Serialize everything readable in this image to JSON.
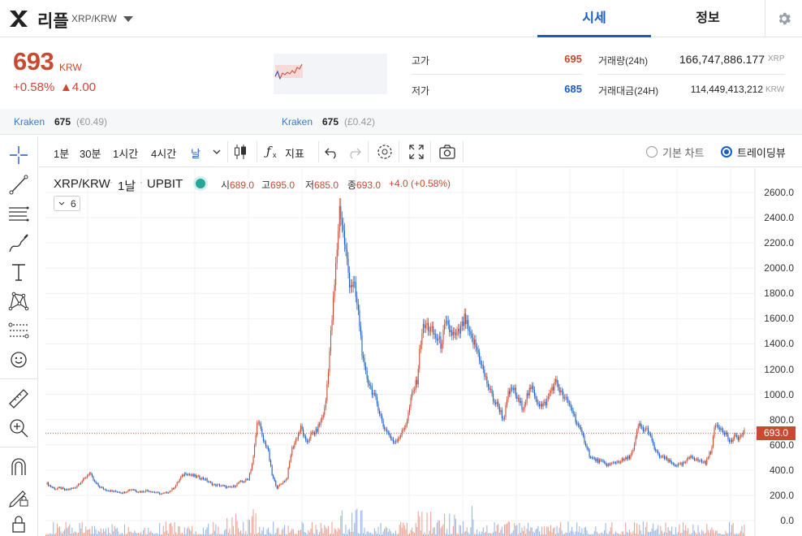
{
  "header": {
    "coin_name": "리플",
    "pair": "XRP/KRW",
    "tabs": [
      {
        "label": "시세",
        "active": true
      },
      {
        "label": "정보",
        "active": false
      }
    ]
  },
  "summary": {
    "price": "693",
    "unit": "KRW",
    "change_pct": "+0.58%",
    "change_abs": "▲4.00",
    "high_label": "고가",
    "high_value": "695",
    "low_label": "저가",
    "low_value": "685",
    "volume_label": "거래량(24h)",
    "volume_value": "166,747,886.177",
    "volume_unit": "XRP",
    "turnover_label": "거래대금(24H)",
    "turnover_value": "114,449,413,212",
    "turnover_unit": "KRW"
  },
  "exchanges": [
    {
      "name": "Kraken",
      "price": "675",
      "sub": "(€0.49)"
    },
    {
      "name": "Kraken",
      "price": "675",
      "sub": "(£0.42)"
    }
  ],
  "toolbar": {
    "timeframes": [
      "1분",
      "30분",
      "1시간",
      "4시간",
      "날"
    ],
    "active_timeframe": "날",
    "indicators_label": "지표",
    "chart_modes": [
      {
        "label": "기본 차트",
        "selected": false
      },
      {
        "label": "트레이딩뷰",
        "selected": true
      }
    ]
  },
  "legend": {
    "symbol": "XRP/KRW",
    "interval": "1날",
    "exchange": "UPBIT",
    "open_label": "시",
    "open": "689.0",
    "high_label": "고",
    "high": "695.0",
    "low_label": "저",
    "low": "685.0",
    "close_label": "종",
    "close": "693.0",
    "change": "+4.0 (+0.58%)",
    "indicator_count": "6"
  },
  "colors": {
    "up": "#c84a31",
    "down": "#1a5bc4",
    "accent": "#1a5bc4"
  },
  "chart_data": {
    "type": "candlestick",
    "title": "XRP/KRW",
    "y_ticks": [
      "2600.0",
      "2400.0",
      "2200.0",
      "2000.0",
      "1800.0",
      "1600.0",
      "1400.0",
      "1200.0",
      "1000.0",
      "800.0",
      "600.0",
      "400.0",
      "200.0",
      "0.0"
    ],
    "ylim": [
      0,
      2600
    ],
    "last_price": "693.0",
    "grid": true,
    "close_series": [
      300,
      270,
      250,
      260,
      240,
      250,
      260,
      300,
      330,
      380,
      310,
      270,
      250,
      240,
      230,
      230,
      220,
      240,
      250,
      230,
      230,
      240,
      230,
      220,
      210,
      220,
      240,
      280,
      340,
      380,
      360,
      350,
      340,
      330,
      300,
      280,
      280,
      270,
      260,
      270,
      300,
      310,
      330,
      480,
      820,
      640,
      580,
      350,
      260,
      300,
      330,
      560,
      650,
      740,
      610,
      680,
      700,
      780,
      900,
      1400,
      1900,
      2500,
      2200,
      1900,
      1850,
      1600,
      1200,
      1100,
      1000,
      900,
      750,
      700,
      620,
      650,
      700,
      800,
      1000,
      1100,
      1500,
      1550,
      1500,
      1450,
      1400,
      1550,
      1500,
      1450,
      1500,
      1600,
      1450,
      1400,
      1300,
      1150,
      1050,
      950,
      900,
      800,
      1000,
      1050,
      950,
      900,
      1000,
      1050,
      950,
      900,
      950,
      1050,
      1100,
      1000,
      950,
      900,
      800,
      700,
      620,
      500,
      480,
      470,
      450,
      440,
      460,
      470,
      480,
      500,
      560,
      760,
      720,
      720,
      600,
      520,
      500,
      480,
      450,
      440,
      440,
      470,
      520,
      480,
      470,
      460,
      550,
      760,
      740,
      700,
      620,
      660,
      660,
      700
    ]
  }
}
